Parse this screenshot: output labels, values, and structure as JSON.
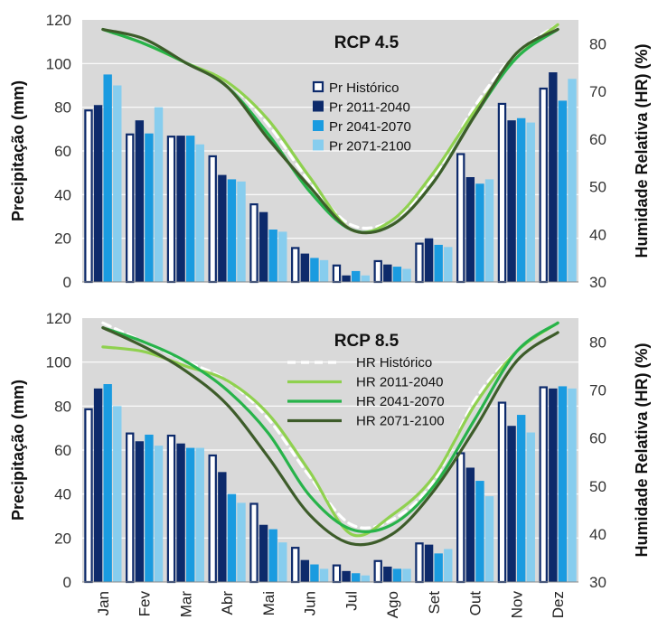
{
  "colors": {
    "plot_bg": "#d9d9d9",
    "grid": "#ffffff",
    "bar_hist_fill": "#ffffff",
    "bar_hist_stroke": "#0d2a6b",
    "bar_2011": "#0d2a6b",
    "bar_2041": "#1a9be0",
    "bar_2071": "#87cdee",
    "line_hist": "#ffffff",
    "line_2011": "#8fd14f",
    "line_2041": "#27b34a",
    "line_2071": "#3d5c2a"
  },
  "chart_data": [
    {
      "type": "bar",
      "title": "RCP 4.5",
      "categories": [
        "Jan",
        "Fev",
        "Mar",
        "Abr",
        "Mai",
        "Jun",
        "Jul",
        "Ago",
        "Set",
        "Out",
        "Nov",
        "Dez"
      ],
      "ylabel": "Precipitação (mm)",
      "y2label": "Humidade Relativa (HR) (%)",
      "ylim": [
        0,
        120
      ],
      "y2lim": [
        30,
        85
      ],
      "yticks": [
        "0",
        "20",
        "40",
        "60",
        "80",
        "100",
        "120"
      ],
      "y2ticks": [
        "30",
        "40",
        "50",
        "60",
        "70",
        "80"
      ],
      "legend_position": "center",
      "grid": true,
      "series": [
        {
          "name": "Pr Histórico",
          "kind": "bar",
          "values": [
            79,
            68,
            67,
            58,
            36,
            16,
            8,
            10,
            18,
            59,
            82,
            89
          ]
        },
        {
          "name": "Pr 2011-2040",
          "kind": "bar",
          "values": [
            81,
            74,
            67,
            49,
            32,
            13,
            3,
            8,
            20,
            48,
            74,
            96
          ]
        },
        {
          "name": "Pr 2041-2070",
          "kind": "bar",
          "values": [
            95,
            68,
            67,
            47,
            24,
            11,
            5,
            7,
            17,
            45,
            75,
            83
          ]
        },
        {
          "name": "Pr 2071-2100",
          "kind": "bar",
          "values": [
            90,
            80,
            63,
            46,
            23,
            10,
            3,
            6,
            16,
            47,
            73,
            93
          ]
        },
        {
          "kind": "line",
          "axis": "y2",
          "values": [
            83,
            81,
            76,
            72,
            63,
            51,
            42,
            43,
            52,
            67,
            78,
            84
          ]
        },
        {
          "kind": "line",
          "axis": "y2",
          "values": [
            83,
            80,
            76,
            72,
            64,
            52,
            41,
            43,
            53,
            66,
            77,
            84
          ]
        },
        {
          "kind": "line",
          "axis": "y2",
          "values": [
            83,
            80,
            76,
            71,
            61,
            49,
            41,
            42,
            51,
            65,
            77,
            83
          ]
        },
        {
          "kind": "line",
          "axis": "y2",
          "values": [
            83,
            81,
            76,
            71,
            60,
            50,
            41,
            42,
            51,
            65,
            78,
            83
          ]
        }
      ]
    },
    {
      "type": "bar",
      "title": "RCP 8.5",
      "categories": [
        "Jan",
        "Fev",
        "Mar",
        "Abr",
        "Mai",
        "Jun",
        "Jul",
        "Ago",
        "Set",
        "Out",
        "Nov",
        "Dez"
      ],
      "ylabel": "Precipitação (mm)",
      "y2label": "Humidade Relativa (HR) (%)",
      "ylim": [
        0,
        120
      ],
      "y2lim": [
        30,
        85
      ],
      "yticks": [
        "0",
        "20",
        "40",
        "60",
        "80",
        "100",
        "120"
      ],
      "y2ticks": [
        "30",
        "40",
        "50",
        "60",
        "70",
        "80"
      ],
      "legend_position": "center",
      "grid": true,
      "series": [
        {
          "kind": "bar",
          "values": [
            79,
            68,
            67,
            58,
            36,
            16,
            8,
            10,
            18,
            59,
            82,
            89
          ]
        },
        {
          "kind": "bar",
          "values": [
            88,
            64,
            63,
            50,
            26,
            10,
            5,
            7,
            17,
            52,
            71,
            88
          ]
        },
        {
          "kind": "bar",
          "values": [
            90,
            67,
            61,
            40,
            24,
            8,
            4,
            6,
            13,
            46,
            76,
            89
          ]
        },
        {
          "kind": "bar",
          "values": [
            80,
            62,
            61,
            36,
            18,
            6,
            3,
            6,
            15,
            39,
            68,
            88
          ]
        },
        {
          "name": "HR Histórico",
          "kind": "line",
          "axis": "y2",
          "values": [
            84,
            80,
            76,
            72,
            64,
            52,
            42,
            43,
            51,
            68,
            78,
            84
          ]
        },
        {
          "name": "HR 2011-2040",
          "kind": "line",
          "axis": "y2",
          "values": [
            79,
            78,
            75,
            72,
            65,
            53,
            40,
            44,
            52,
            67,
            78,
            84
          ]
        },
        {
          "name": "HR 2041-2070",
          "kind": "line",
          "axis": "y2",
          "values": [
            83,
            80,
            76,
            70,
            61,
            48,
            41,
            42,
            50,
            64,
            78,
            84
          ]
        },
        {
          "name": "HR 2071-2100",
          "kind": "line",
          "axis": "y2",
          "values": [
            83,
            79,
            74,
            67,
            56,
            44,
            38,
            40,
            49,
            62,
            76,
            82
          ]
        }
      ]
    }
  ]
}
